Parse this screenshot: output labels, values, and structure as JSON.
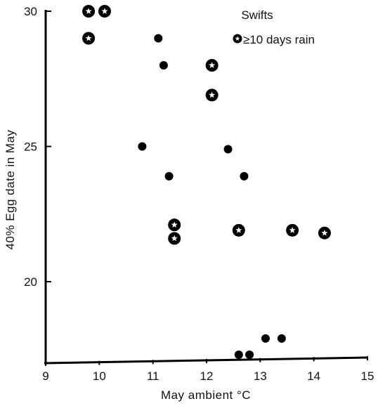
{
  "chart_data": {
    "type": "scatter",
    "title": "",
    "xlabel": "May ambient °C",
    "ylabel": "40% Egg date in May",
    "xlim": [
      9,
      15
    ],
    "ylim": [
      17.2,
      30
    ],
    "x_ticks": [
      9,
      10,
      11,
      12,
      13,
      14,
      15
    ],
    "y_ticks": [
      20,
      25,
      30
    ],
    "grid": false,
    "legend": {
      "title": "Swifts",
      "placement": "top-right",
      "entries": [
        {
          "marker": "ring-with-star",
          "label": "≥10 days rain"
        }
      ]
    },
    "series": [
      {
        "marker": "filled-circle",
        "points": [
          {
            "x": 11.1,
            "y": 29.0
          },
          {
            "x": 11.2,
            "y": 28.0
          },
          {
            "x": 10.8,
            "y": 25.0
          },
          {
            "x": 11.3,
            "y": 23.9
          },
          {
            "x": 12.4,
            "y": 24.9
          },
          {
            "x": 12.7,
            "y": 23.9
          },
          {
            "x": 13.1,
            "y": 17.9
          },
          {
            "x": 13.4,
            "y": 17.9
          },
          {
            "x": 12.6,
            "y": 17.3
          },
          {
            "x": 12.8,
            "y": 17.3
          }
        ]
      },
      {
        "name": "≥10 days rain",
        "marker": "ring-with-star",
        "points": [
          {
            "x": 9.8,
            "y": 30.0
          },
          {
            "x": 10.1,
            "y": 30.0
          },
          {
            "x": 9.8,
            "y": 29.0
          },
          {
            "x": 12.1,
            "y": 28.0
          },
          {
            "x": 12.1,
            "y": 26.9
          },
          {
            "x": 11.4,
            "y": 22.1
          },
          {
            "x": 11.4,
            "y": 21.6
          },
          {
            "x": 12.6,
            "y": 21.9
          },
          {
            "x": 13.6,
            "y": 21.9
          },
          {
            "x": 14.2,
            "y": 21.8
          }
        ]
      }
    ]
  }
}
